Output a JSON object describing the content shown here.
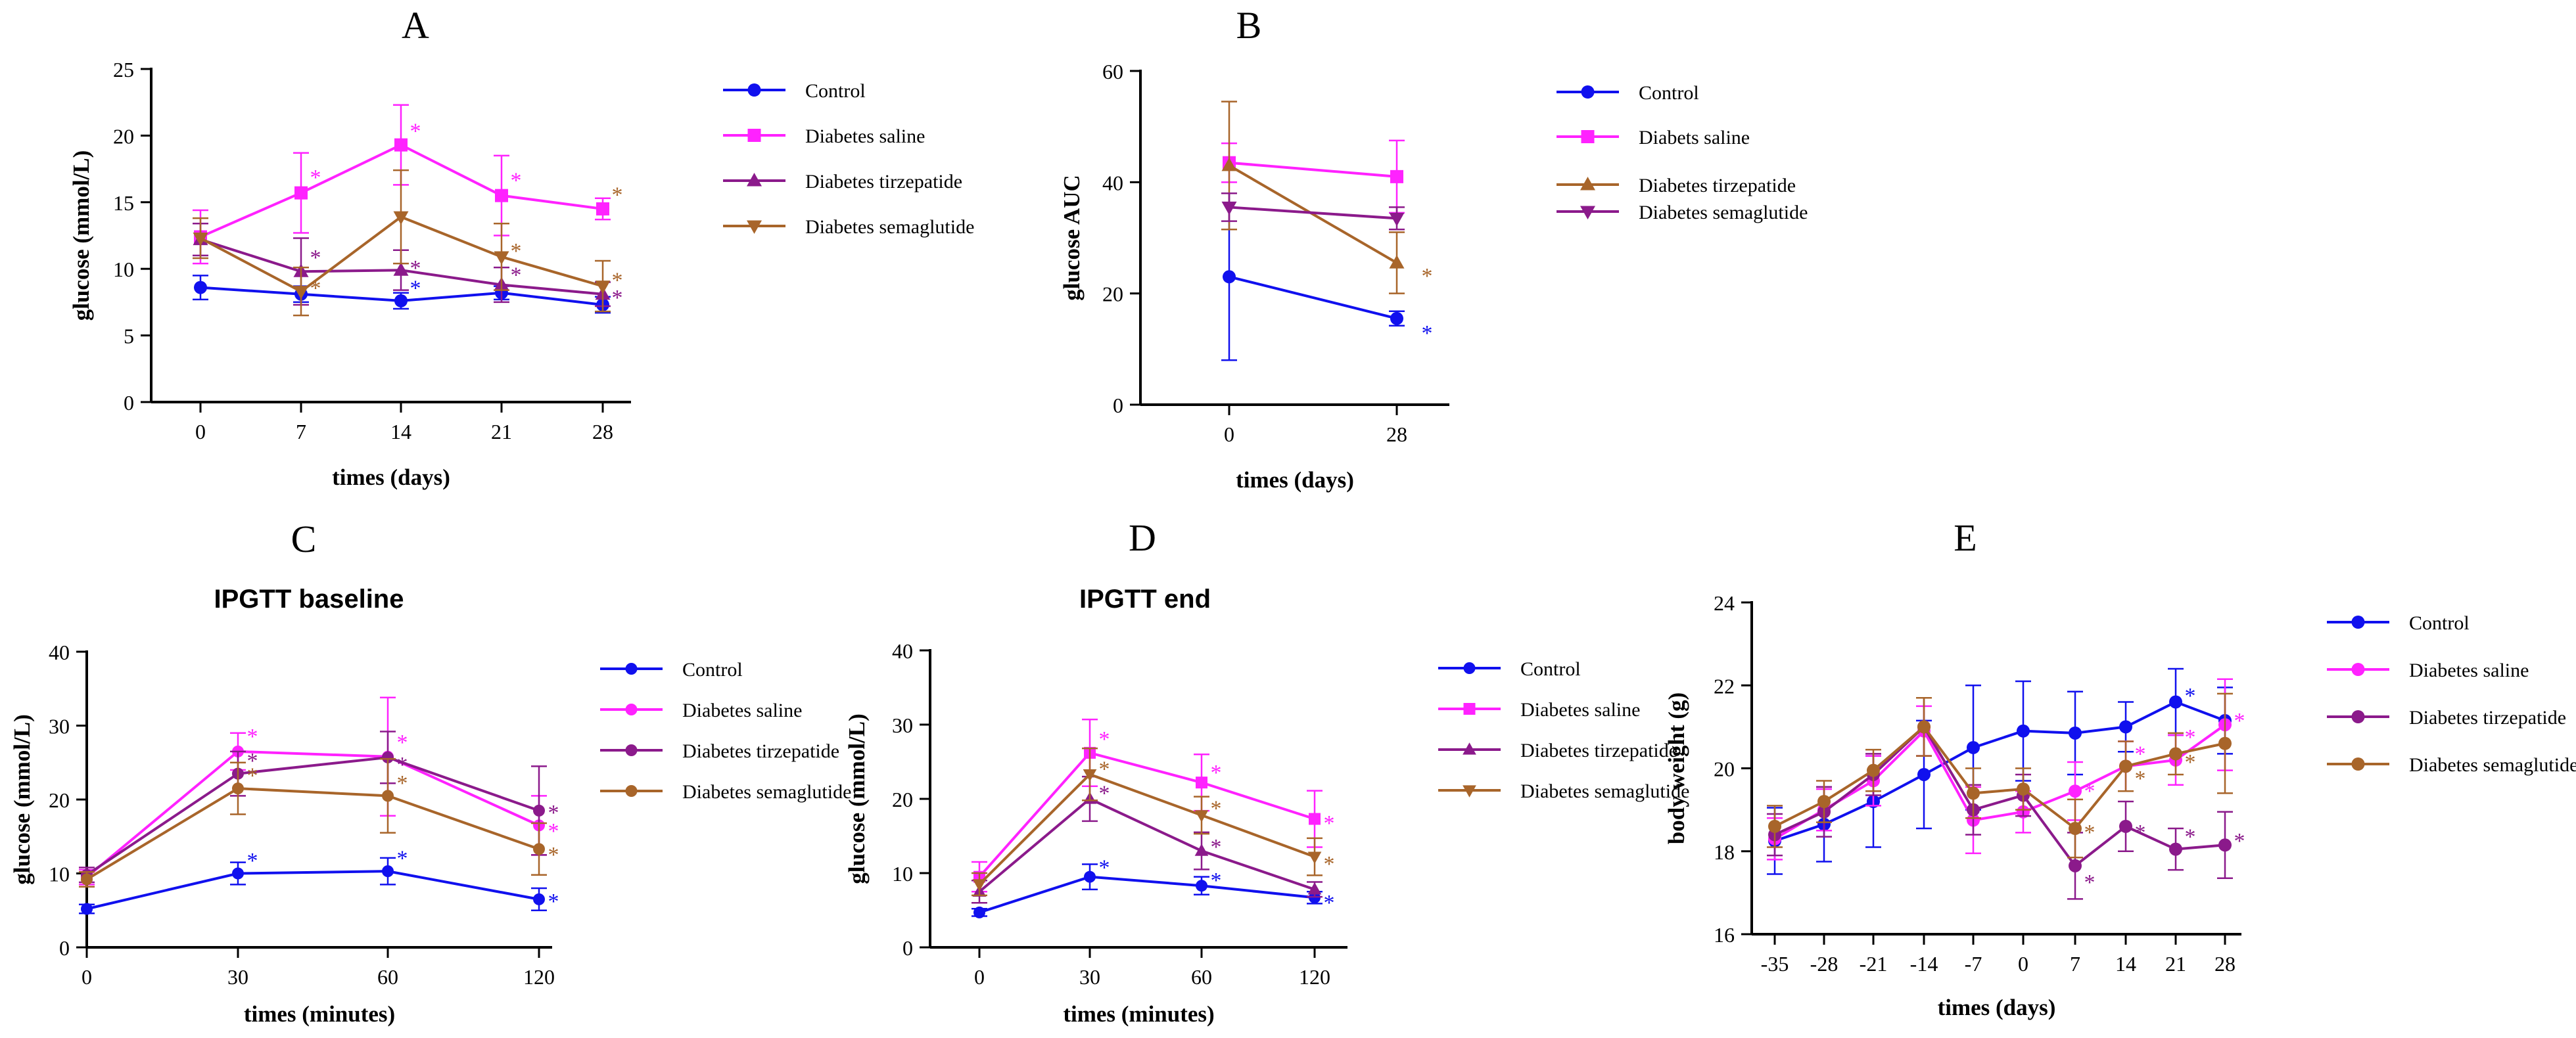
{
  "colors": {
    "control": "#1010ee",
    "saline": "#ff22ff",
    "tirzepatide": "#8b1a8b",
    "semaglutide": "#a8652a",
    "axis": "#000000"
  },
  "chart_data": [
    {
      "panel": "A",
      "type": "line",
      "title": "",
      "xlabel": "times (days)",
      "ylabel": "glucose (mmol/L)",
      "x": [
        0,
        7,
        14,
        21,
        28
      ],
      "x_tick_labels": [
        "0",
        "7",
        "14",
        "21",
        "28"
      ],
      "ylim": [
        0,
        25
      ],
      "y_ticks": [
        0,
        5,
        10,
        15,
        20,
        25
      ],
      "series": [
        {
          "name": "Control",
          "key": "control",
          "marker": "circle",
          "values": [
            8.6,
            8.1,
            7.6,
            8.2,
            7.3
          ],
          "errors": [
            0.9,
            0.6,
            0.6,
            0.5,
            0.6
          ]
        },
        {
          "name": "Diabetes saline",
          "key": "saline",
          "marker": "square",
          "values": [
            12.4,
            15.7,
            19.3,
            15.5,
            14.5
          ],
          "errors": [
            2.0,
            3.0,
            3.0,
            3.0,
            0.8
          ]
        },
        {
          "name": "Diabetes tirzepatide",
          "key": "tirzepatide",
          "marker": "triangle-up",
          "values": [
            12.2,
            9.8,
            9.9,
            8.8,
            8.1
          ],
          "errors": [
            1.2,
            2.5,
            1.5,
            1.3,
            0.9
          ]
        },
        {
          "name": "Diabetes semaglutide",
          "key": "semaglutide",
          "marker": "triangle-down",
          "values": [
            12.3,
            8.3,
            13.9,
            10.9,
            8.7
          ],
          "errors": [
            1.5,
            1.8,
            3.5,
            2.5,
            1.9
          ]
        }
      ],
      "annotations": [
        {
          "text": "*",
          "x": 7,
          "y": 17,
          "key": "saline"
        },
        {
          "text": "*",
          "x": 14,
          "y": 20.5,
          "key": "saline"
        },
        {
          "text": "*",
          "x": 21,
          "y": 16.8,
          "key": "saline"
        },
        {
          "text": "*",
          "x": 28,
          "y": 15.7,
          "key": "semaglutide"
        },
        {
          "text": "*",
          "x": 7,
          "y": 11.0,
          "key": "tirzepatide"
        },
        {
          "text": "*",
          "x": 7,
          "y": 8.7,
          "key": "semaglutide"
        },
        {
          "text": "*",
          "x": 14,
          "y": 10.2,
          "key": "tirzepatide"
        },
        {
          "text": "*",
          "x": 14,
          "y": 8.7,
          "key": "control"
        },
        {
          "text": "*",
          "x": 21,
          "y": 11.5,
          "key": "semaglutide"
        },
        {
          "text": "*",
          "x": 21,
          "y": 9.7,
          "key": "tirzepatide"
        },
        {
          "text": "*",
          "x": 28,
          "y": 9.3,
          "key": "semaglutide"
        },
        {
          "text": "*",
          "x": 28,
          "y": 8.0,
          "key": "tirzepatide"
        }
      ]
    },
    {
      "panel": "B",
      "type": "line",
      "title": "",
      "xlabel": "times (days)",
      "ylabel": "glucose AUC",
      "x": [
        0,
        28
      ],
      "x_tick_labels": [
        "0",
        "28"
      ],
      "ylim": [
        0,
        60
      ],
      "y_ticks": [
        0,
        20,
        40,
        60
      ],
      "series": [
        {
          "name": "Control",
          "key": "control",
          "marker": "circle",
          "values": [
            23,
            15.5
          ],
          "errors": [
            15,
            1.3
          ]
        },
        {
          "name": "Diabets saline",
          "key": "saline",
          "marker": "square",
          "values": [
            43.5,
            41
          ],
          "errors": [
            3.5,
            6.5
          ]
        },
        {
          "name": "Diabetes tirzepatide",
          "key": "semaglutide",
          "marker": "triangle-up",
          "values": [
            43,
            25.5
          ],
          "errors": [
            11.5,
            5.5
          ]
        },
        {
          "name": "Diabetes semaglutide",
          "key": "tirzepatide",
          "marker": "triangle-down",
          "values": [
            35.5,
            33.5
          ],
          "errors": [
            2.5,
            2.0
          ]
        }
      ],
      "annotations": [
        {
          "text": "*",
          "x": 28,
          "y": 23.5,
          "key": "semaglutide"
        },
        {
          "text": "*",
          "x": 28,
          "y": 13.2,
          "key": "control"
        }
      ]
    },
    {
      "panel": "C",
      "type": "line",
      "title": "IPGTT baseline",
      "xlabel": "times (minutes)",
      "ylabel": "glucose (mmol/L)",
      "x": [
        0,
        30,
        60,
        120
      ],
      "x_tick_labels": [
        "0",
        "30",
        "60",
        "120"
      ],
      "ylim": [
        0,
        40
      ],
      "y_ticks": [
        0,
        10,
        20,
        30,
        40
      ],
      "series": [
        {
          "name": "Control",
          "key": "control",
          "marker": "circle",
          "values": [
            5.2,
            10.0,
            10.3,
            6.5
          ],
          "errors": [
            0.6,
            1.5,
            1.8,
            1.5
          ]
        },
        {
          "name": "Diabetes saline",
          "key": "saline",
          "marker": "circle",
          "values": [
            9.5,
            26.5,
            25.8,
            16.5
          ],
          "errors": [
            1.0,
            2.5,
            8.0,
            4.0
          ]
        },
        {
          "name": "Diabetes tirzepatide",
          "key": "tirzepatide",
          "marker": "circle",
          "values": [
            9.8,
            23.5,
            25.7,
            18.5
          ],
          "errors": [
            1.0,
            3.0,
            3.5,
            6.0
          ]
        },
        {
          "name": "Diabetes semaglutide",
          "key": "semaglutide",
          "marker": "circle",
          "values": [
            9.2,
            21.5,
            20.5,
            13.3
          ],
          "errors": [
            1.0,
            3.5,
            5.0,
            3.5
          ]
        }
      ],
      "annotations": [
        {
          "text": "*",
          "x": 30,
          "y": 28.8,
          "key": "saline"
        },
        {
          "text": "*",
          "x": 30,
          "y": 25.5,
          "key": "tirzepatide"
        },
        {
          "text": "*",
          "x": 30,
          "y": 23.5,
          "key": "semaglutide"
        },
        {
          "text": "*",
          "x": 30,
          "y": 12.0,
          "key": "control"
        },
        {
          "text": "*",
          "x": 60,
          "y": 28.0,
          "key": "saline"
        },
        {
          "text": "*",
          "x": 60,
          "y": 25.0,
          "key": "tirzepatide"
        },
        {
          "text": "*",
          "x": 60,
          "y": 22.5,
          "key": "semaglutide"
        },
        {
          "text": "*",
          "x": 60,
          "y": 12.3,
          "key": "control"
        },
        {
          "text": "*",
          "x": 120,
          "y": 18.5,
          "key": "tirzepatide"
        },
        {
          "text": "*",
          "x": 120,
          "y": 16.0,
          "key": "saline"
        },
        {
          "text": "*",
          "x": 120,
          "y": 12.8,
          "key": "semaglutide"
        },
        {
          "text": "*",
          "x": 120,
          "y": 6.5,
          "key": "control"
        }
      ]
    },
    {
      "panel": "D",
      "type": "line",
      "title": "IPGTT end",
      "xlabel": "times (minutes)",
      "ylabel": "glucose (mmol/L)",
      "x": [
        0,
        30,
        60,
        120
      ],
      "x_tick_labels": [
        "0",
        "30",
        "60",
        "120"
      ],
      "ylim": [
        0,
        40
      ],
      "y_ticks": [
        0,
        10,
        20,
        30,
        40
      ],
      "series": [
        {
          "name": "Control",
          "key": "control",
          "marker": "circle",
          "values": [
            4.7,
            9.5,
            8.3,
            6.7
          ],
          "errors": [
            0.5,
            1.7,
            1.2,
            0.8
          ]
        },
        {
          "name": "Diabetes saline",
          "key": "saline",
          "marker": "square",
          "values": [
            9.5,
            26.2,
            22.2,
            17.3
          ],
          "errors": [
            2.0,
            4.5,
            3.8,
            3.8
          ]
        },
        {
          "name": "Diabetes tirzepatide",
          "key": "tirzepatide",
          "marker": "triangle-up",
          "values": [
            7.5,
            20.0,
            13.0,
            7.8
          ],
          "errors": [
            1.5,
            3.0,
            2.5,
            1.0
          ]
        },
        {
          "name": "Diabetes semaglutide",
          "key": "semaglutide",
          "marker": "triangle-down",
          "values": [
            8.5,
            23.3,
            17.8,
            12.2
          ],
          "errors": [
            1.5,
            3.5,
            2.5,
            2.5
          ]
        }
      ],
      "annotations": [
        {
          "text": "*",
          "x": 30,
          "y": 28.3,
          "key": "saline"
        },
        {
          "text": "*",
          "x": 30,
          "y": 24.3,
          "key": "semaglutide"
        },
        {
          "text": "*",
          "x": 30,
          "y": 21.0,
          "key": "tirzepatide"
        },
        {
          "text": "*",
          "x": 30,
          "y": 11.0,
          "key": "control"
        },
        {
          "text": "*",
          "x": 60,
          "y": 23.8,
          "key": "saline"
        },
        {
          "text": "*",
          "x": 60,
          "y": 19.0,
          "key": "semaglutide"
        },
        {
          "text": "*",
          "x": 60,
          "y": 13.8,
          "key": "tirzepatide"
        },
        {
          "text": "*",
          "x": 60,
          "y": 9.3,
          "key": "control"
        },
        {
          "text": "*",
          "x": 120,
          "y": 17.0,
          "key": "saline"
        },
        {
          "text": "*",
          "x": 120,
          "y": 11.5,
          "key": "semaglutide"
        },
        {
          "text": "*",
          "x": 120,
          "y": 6.3,
          "key": "control"
        }
      ]
    },
    {
      "panel": "E",
      "type": "line",
      "title": "",
      "xlabel": "times (days)",
      "ylabel": "body weight (g)",
      "x": [
        -35,
        -28,
        -21,
        -14,
        -7,
        0,
        7,
        14,
        21,
        28
      ],
      "x_tick_labels": [
        "-35",
        "-28",
        "-21",
        "-14",
        "-7",
        "0",
        "7",
        "14",
        "21",
        "28"
      ],
      "ylim": [
        16,
        24
      ],
      "y_ticks": [
        16,
        18,
        20,
        22,
        24
      ],
      "series": [
        {
          "name": "Control",
          "key": "control",
          "marker": "circle",
          "values": [
            18.25,
            18.65,
            19.2,
            19.85,
            20.5,
            20.9,
            20.85,
            21.0,
            21.6,
            21.15
          ],
          "errors": [
            0.8,
            0.9,
            1.1,
            1.3,
            1.5,
            1.2,
            1.0,
            0.6,
            0.8,
            0.8
          ]
        },
        {
          "name": "Diabetes saline",
          "key": "saline",
          "marker": "circle",
          "values": [
            18.3,
            19.0,
            19.7,
            20.9,
            18.75,
            18.95,
            19.45,
            20.05,
            20.2,
            21.05
          ],
          "errors": [
            0.5,
            0.5,
            0.6,
            0.6,
            0.8,
            0.5,
            0.7,
            0.6,
            0.6,
            1.1
          ]
        },
        {
          "name": "Diabetes tirzepatide",
          "key": "tirzepatide",
          "marker": "circle",
          "values": [
            18.4,
            18.95,
            19.85,
            21.0,
            19.0,
            19.35,
            17.65,
            18.6,
            18.05,
            18.15
          ],
          "errors": [
            0.5,
            0.6,
            0.5,
            0.7,
            0.6,
            0.5,
            0.8,
            0.6,
            0.5,
            0.8
          ]
        },
        {
          "name": "Diabetes semaglutide",
          "key": "semaglutide",
          "marker": "circle",
          "values": [
            18.6,
            19.2,
            19.95,
            21.0,
            19.4,
            19.5,
            18.55,
            20.05,
            20.35,
            20.6
          ],
          "errors": [
            0.5,
            0.5,
            0.5,
            0.7,
            0.6,
            0.5,
            0.7,
            0.6,
            0.5,
            1.2
          ]
        }
      ],
      "annotations": [
        {
          "text": "*",
          "x": 7,
          "y": 19.5,
          "key": "saline"
        },
        {
          "text": "*",
          "x": 7,
          "y": 18.5,
          "key": "semaglutide"
        },
        {
          "text": "*",
          "x": 7,
          "y": 17.3,
          "key": "tirzepatide"
        },
        {
          "text": "*",
          "x": 14,
          "y": 20.4,
          "key": "saline"
        },
        {
          "text": "*",
          "x": 14,
          "y": 19.8,
          "key": "semaglutide"
        },
        {
          "text": "*",
          "x": 14,
          "y": 18.5,
          "key": "tirzepatide"
        },
        {
          "text": "*",
          "x": 21,
          "y": 21.8,
          "key": "control"
        },
        {
          "text": "*",
          "x": 21,
          "y": 20.8,
          "key": "saline"
        },
        {
          "text": "*",
          "x": 21,
          "y": 20.2,
          "key": "semaglutide"
        },
        {
          "text": "*",
          "x": 21,
          "y": 18.4,
          "key": "tirzepatide"
        },
        {
          "text": "*",
          "x": 28,
          "y": 21.2,
          "key": "saline"
        },
        {
          "text": "*",
          "x": 28,
          "y": 18.3,
          "key": "tirzepatide"
        }
      ]
    }
  ],
  "panel_labels": [
    "A",
    "B",
    "C",
    "D",
    "E"
  ]
}
